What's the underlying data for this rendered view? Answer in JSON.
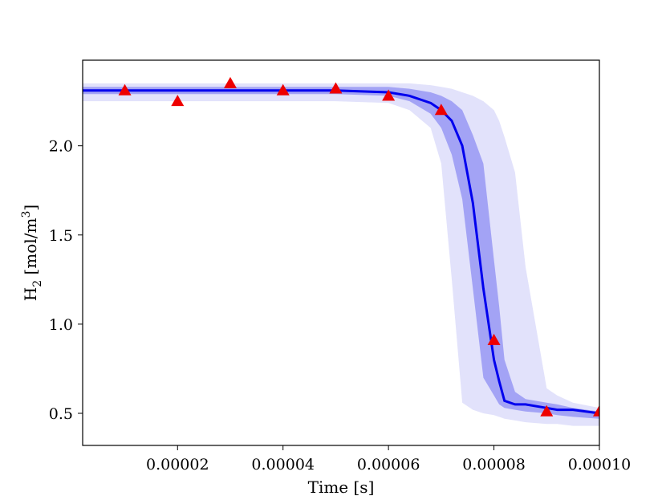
{
  "chart_data": {
    "type": "line",
    "title": "",
    "xlabel": "Time [s]",
    "ylabel": {
      "base": "H",
      "subscript": "2",
      "unit_open": " [mol/m",
      "superscript": "3",
      "unit_close": "]"
    },
    "xlim": [
      2e-06,
      0.0001
    ],
    "ylim": [
      0.32,
      2.48
    ],
    "xticks": [
      {
        "value": 2e-05,
        "label": "0.00002"
      },
      {
        "value": 4e-05,
        "label": "0.00004"
      },
      {
        "value": 6e-05,
        "label": "0.00006"
      },
      {
        "value": 8e-05,
        "label": "0.00008"
      },
      {
        "value": 0.0001,
        "label": "0.00010"
      }
    ],
    "yticks": [
      {
        "value": 0.5,
        "label": "0.5"
      },
      {
        "value": 1.0,
        "label": "1.0"
      },
      {
        "value": 1.5,
        "label": "1.5"
      },
      {
        "value": 2.0,
        "label": "2.0"
      }
    ],
    "grid": false,
    "colors": {
      "mean_line": "#0000ee",
      "inner_band": "#a3a3f5",
      "outer_band": "#e2e2fb",
      "markers": "#ee0000"
    },
    "x": [
      2e-06,
      1e-05,
      2e-05,
      3e-05,
      4e-05,
      5e-05,
      6e-05,
      6.4e-05,
      6.8e-05,
      7e-05,
      7.2e-05,
      7.4e-05,
      7.6e-05,
      7.8e-05,
      8e-05,
      8.1e-05,
      8.2e-05,
      8.4e-05,
      8.6e-05,
      9e-05,
      9.2e-05,
      9.5e-05,
      0.0001
    ],
    "series": [
      {
        "role": "mean",
        "values": [
          2.31,
          2.31,
          2.31,
          2.31,
          2.31,
          2.31,
          2.3,
          2.28,
          2.24,
          2.2,
          2.14,
          2.0,
          1.68,
          1.2,
          0.8,
          0.68,
          0.57,
          0.55,
          0.55,
          0.53,
          0.52,
          0.52,
          0.5
        ]
      },
      {
        "role": "inner_band",
        "upper": [
          2.33,
          2.33,
          2.33,
          2.33,
          2.33,
          2.33,
          2.33,
          2.32,
          2.3,
          2.28,
          2.25,
          2.2,
          2.06,
          1.9,
          1.36,
          1.1,
          0.8,
          0.62,
          0.58,
          0.56,
          0.55,
          0.53,
          0.51
        ],
        "lower": [
          2.29,
          2.29,
          2.29,
          2.29,
          2.29,
          2.29,
          2.28,
          2.25,
          2.18,
          2.1,
          1.95,
          1.7,
          1.2,
          0.7,
          0.6,
          0.55,
          0.53,
          0.52,
          0.51,
          0.5,
          0.49,
          0.48,
          0.47
        ]
      },
      {
        "role": "outer_band",
        "upper": [
          2.35,
          2.35,
          2.35,
          2.35,
          2.35,
          2.35,
          2.35,
          2.35,
          2.34,
          2.33,
          2.32,
          2.3,
          2.28,
          2.25,
          2.2,
          2.14,
          2.05,
          1.85,
          1.32,
          0.64,
          0.6,
          0.56,
          0.53
        ],
        "lower": [
          2.25,
          2.25,
          2.25,
          2.25,
          2.25,
          2.25,
          2.24,
          2.2,
          2.1,
          1.9,
          1.25,
          0.56,
          0.52,
          0.5,
          0.49,
          0.48,
          0.47,
          0.46,
          0.45,
          0.44,
          0.44,
          0.43,
          0.43
        ]
      },
      {
        "role": "markers",
        "marker": "triangle",
        "x": [
          1e-05,
          2e-05,
          3e-05,
          4e-05,
          5e-05,
          6e-05,
          7e-05,
          8e-05,
          9e-05,
          0.0001
        ],
        "values": [
          2.31,
          2.25,
          2.35,
          2.31,
          2.32,
          2.28,
          2.2,
          0.91,
          0.51,
          0.51
        ]
      }
    ]
  }
}
